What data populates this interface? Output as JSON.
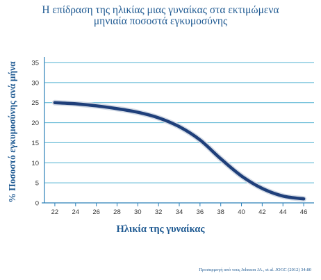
{
  "chart_data": {
    "type": "line",
    "title_lines": [
      "Η επίδραση της ηλικίας μιας γυναίκας στα εκτιμώμενα",
      "μηνιαία ποσοστά εγκυμοσύνης"
    ],
    "xlabel": "Ηλικία της γυναίκας",
    "ylabel": "% Ποσοστό εγκυμοσύνης ανά μήνα",
    "xticks": [
      22,
      24,
      26,
      28,
      30,
      32,
      34,
      36,
      38,
      40,
      42,
      44,
      46
    ],
    "yticks": [
      0,
      5,
      10,
      15,
      20,
      25,
      30,
      35
    ],
    "xlim": [
      21,
      47
    ],
    "ylim": [
      0,
      35
    ],
    "grid": "horizontal",
    "series": [
      {
        "x": [
          22,
          24,
          26,
          28,
          30,
          32,
          34,
          36,
          38,
          40,
          42,
          44,
          46
        ],
        "y": [
          25,
          24.7,
          24.2,
          23.5,
          22.6,
          21.2,
          19.0,
          15.7,
          11.0,
          6.7,
          3.6,
          1.7,
          1.0
        ]
      }
    ],
    "colors": {
      "line": "#1f3f7a",
      "grid": "#4fb0d0",
      "axis": "#2a7fb8",
      "text": "#1f5a92"
    },
    "source": "Προσαρμογή από τους Johnson JA., et al. JOGC (2012) 34:80"
  }
}
